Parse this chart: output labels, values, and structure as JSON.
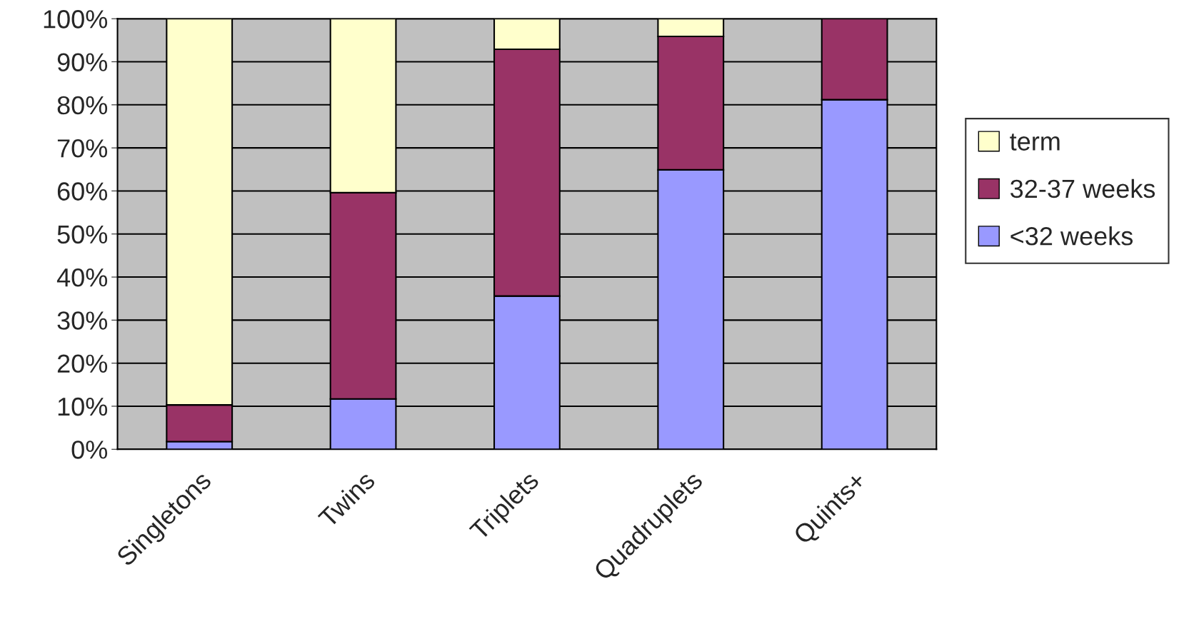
{
  "chart_data": {
    "type": "bar",
    "stacked": true,
    "categories": [
      "Singletons",
      "Twins",
      "Triplets",
      "Quadruplets",
      "Quints+"
    ],
    "series": [
      {
        "name": "<32 weeks",
        "color": "#9999ff",
        "values": [
          1.8,
          11.7,
          35.6,
          64.9,
          81.2
        ]
      },
      {
        "name": "32-37 weeks",
        "color": "#993366",
        "values": [
          8.5,
          47.9,
          57.3,
          31.0,
          18.8
        ]
      },
      {
        "name": "term",
        "color": "#ffffcc",
        "values": [
          89.7,
          40.4,
          7.1,
          4.1,
          null
        ]
      }
    ],
    "ylim": [
      0,
      100
    ],
    "yticks": [
      {
        "value": 0,
        "label": "0%"
      },
      {
        "value": 10,
        "label": "10%"
      },
      {
        "value": 20,
        "label": "20%"
      },
      {
        "value": 30,
        "label": "30%"
      },
      {
        "value": 40,
        "label": "40%"
      },
      {
        "value": 50,
        "label": "50%"
      },
      {
        "value": 60,
        "label": "60%"
      },
      {
        "value": 70,
        "label": "70%"
      },
      {
        "value": 80,
        "label": "80%"
      },
      {
        "value": 90,
        "label": "90%"
      },
      {
        "value": 100,
        "label": "100%"
      }
    ],
    "grid": "y",
    "legend": "right"
  }
}
